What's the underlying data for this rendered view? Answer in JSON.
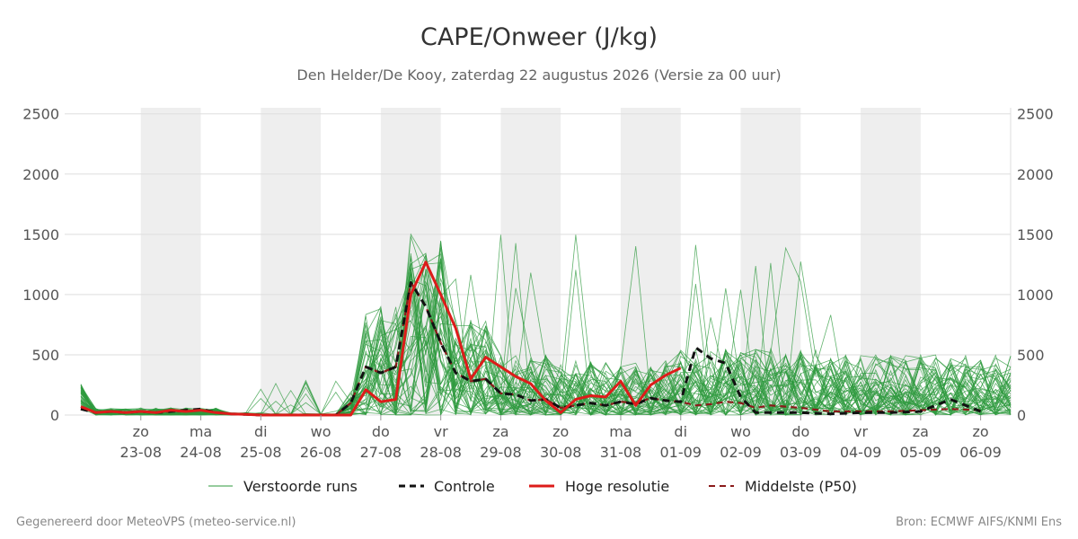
{
  "chart_data": {
    "type": "line",
    "title": "CAPE/Onweer (J/kg)",
    "subtitle": "Den Helder/De Kooy, zaterdag 22 augustus 2026 (Versie za 00 uur)",
    "ylim": [
      0,
      2550
    ],
    "yticks": [
      0,
      500,
      1000,
      1500,
      2000,
      2500
    ],
    "grid": true,
    "x_unit": "day",
    "xlim": [
      0.0,
      15.5
    ],
    "x_ticks": [
      {
        "x": 1,
        "day": "zo",
        "date": "23-08"
      },
      {
        "x": 2,
        "day": "ma",
        "date": "24-08"
      },
      {
        "x": 3,
        "day": "di",
        "date": "25-08"
      },
      {
        "x": 4,
        "day": "wo",
        "date": "26-08"
      },
      {
        "x": 5,
        "day": "do",
        "date": "27-08"
      },
      {
        "x": 6,
        "day": "vr",
        "date": "28-08"
      },
      {
        "x": 7,
        "day": "za",
        "date": "29-08"
      },
      {
        "x": 8,
        "day": "zo",
        "date": "30-08"
      },
      {
        "x": 9,
        "day": "ma",
        "date": "31-08"
      },
      {
        "x": 10,
        "day": "di",
        "date": "01-09"
      },
      {
        "x": 11,
        "day": "wo",
        "date": "02-09"
      },
      {
        "x": 12,
        "day": "do",
        "date": "03-09"
      },
      {
        "x": 13,
        "day": "vr",
        "date": "04-09"
      },
      {
        "x": 14,
        "day": "za",
        "date": "05-09"
      },
      {
        "x": 15,
        "day": "zo",
        "date": "06-09"
      }
    ],
    "night_bands": [
      [
        1,
        2
      ],
      [
        3,
        4
      ],
      [
        5,
        6
      ],
      [
        7,
        8
      ],
      [
        9,
        10
      ],
      [
        11,
        12
      ],
      [
        13,
        14
      ]
    ],
    "legend_position": "bottom",
    "colors": {
      "ensemble": "#2e9a3e",
      "control": "#111111",
      "high_res": "#dd1c1a",
      "median": "#8b1a1a",
      "band": "#eeeeee",
      "grid": "#dddddd"
    },
    "series": [
      {
        "name": "Controle",
        "style": "dashed-bold",
        "x": [
          0,
          0.25,
          0.5,
          0.75,
          1,
          1.25,
          1.5,
          1.75,
          2,
          2.25,
          2.5,
          2.75,
          3,
          3.25,
          3.5,
          3.75,
          4,
          4.25,
          4.5,
          4.75,
          5,
          5.25,
          5.5,
          5.75,
          6,
          6.25,
          6.5,
          6.75,
          7,
          7.25,
          7.5,
          7.75,
          8,
          8.25,
          8.5,
          8.75,
          9,
          9.25,
          9.5,
          9.75,
          10,
          10.25,
          10.5,
          10.75,
          11,
          11.25,
          11.5,
          12,
          12.5,
          13,
          13.5,
          14,
          14.5,
          15
        ],
        "y": [
          50,
          20,
          30,
          20,
          30,
          20,
          30,
          40,
          50,
          20,
          10,
          5,
          0,
          0,
          0,
          0,
          0,
          0,
          100,
          400,
          350,
          400,
          1100,
          900,
          600,
          350,
          280,
          300,
          180,
          170,
          120,
          130,
          60,
          80,
          100,
          80,
          110,
          90,
          140,
          120,
          110,
          560,
          470,
          430,
          150,
          20,
          20,
          20,
          10,
          20,
          20,
          30,
          130,
          30
        ]
      },
      {
        "name": "Hoge resolutie",
        "style": "solid-bold",
        "x": [
          0,
          0.25,
          0.5,
          0.75,
          1,
          1.25,
          1.5,
          1.75,
          2,
          2.25,
          2.5,
          2.75,
          3,
          3.25,
          3.5,
          3.75,
          4,
          4.25,
          4.5,
          4.75,
          5,
          5.25,
          5.5,
          5.75,
          6,
          6.25,
          6.5,
          6.75,
          7,
          7.25,
          7.5,
          7.75,
          8,
          8.25,
          8.5,
          8.75,
          9,
          9.25,
          9.5,
          9.75,
          10
        ],
        "y": [
          70,
          20,
          30,
          20,
          30,
          20,
          40,
          30,
          40,
          20,
          10,
          5,
          0,
          0,
          0,
          0,
          0,
          0,
          0,
          210,
          110,
          130,
          1000,
          1270,
          1000,
          720,
          300,
          480,
          400,
          320,
          260,
          120,
          20,
          130,
          160,
          150,
          280,
          80,
          250,
          330,
          390
        ]
      },
      {
        "name": "Middelste (P50)",
        "style": "dashed",
        "x": [
          0,
          0.25,
          0.5,
          0.75,
          1,
          1.25,
          1.5,
          1.75,
          2,
          2.25,
          2.5,
          2.75,
          3,
          3.25,
          3.5,
          3.75,
          4,
          4.25,
          4.5,
          4.75,
          5,
          5.25,
          5.5,
          5.75,
          6,
          6.25,
          6.5,
          6.75,
          7,
          7.25,
          7.5,
          7.75,
          8,
          8.25,
          8.5,
          8.75,
          9,
          9.25,
          9.5,
          9.75,
          10,
          10.25,
          10.5,
          10.75,
          11,
          11.25,
          11.5,
          12,
          12.5,
          13,
          13.5,
          14,
          14.5,
          15
        ],
        "y": [
          50,
          20,
          30,
          20,
          30,
          20,
          30,
          30,
          40,
          20,
          10,
          5,
          0,
          0,
          0,
          0,
          0,
          0,
          100,
          400,
          350,
          400,
          1100,
          900,
          600,
          350,
          280,
          300,
          180,
          170,
          120,
          130,
          60,
          80,
          100,
          80,
          110,
          100,
          140,
          120,
          110,
          80,
          90,
          110,
          100,
          60,
          80,
          60,
          30,
          30,
          30,
          40,
          50,
          40
        ]
      }
    ],
    "ensemble_label": "Verstoorde runs",
    "ensemble_members": 50
  },
  "footer": {
    "left": "Gegenereerd door MeteoVPS (meteo-service.nl)",
    "right": "Bron: ECMWF AIFS/KNMI Ens"
  }
}
